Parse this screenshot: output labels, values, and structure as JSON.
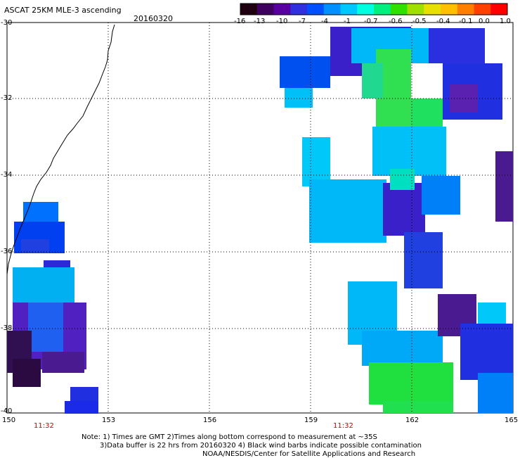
{
  "header": {
    "title": "ASCAT 25KM MLE-3 ascending",
    "date": "20160320"
  },
  "colorbar": {
    "ticks": [
      "-16",
      "-13",
      "-10",
      "-7",
      "-4",
      "-1",
      "-0.7",
      "-0.6",
      "-0.5",
      "-0.4",
      "-0.1",
      "0.0",
      "1.0"
    ],
    "colors": [
      "#200010",
      "#400060",
      "#5a00a0",
      "#3030e0",
      "#0050ff",
      "#0090ff",
      "#00c8ff",
      "#00ffe0",
      "#00f080",
      "#30e000",
      "#a0e000",
      "#e8e000",
      "#ffc000",
      "#ff8000",
      "#ff4000",
      "#ff0000"
    ]
  },
  "axes": {
    "lat_labels": [
      "-30",
      "-32",
      "-34",
      "-36",
      "-38",
      "-40"
    ],
    "lon_labels": [
      "150",
      "153",
      "156",
      "159",
      "162",
      "165"
    ]
  },
  "times": [
    "11:32",
    "11:32"
  ],
  "notes": {
    "line1": "Note: 1) Times are GMT 2)Times along bottom correspond to measurement at ~35S",
    "line2": "3)Data buffer is 22 hrs from 20160320 4) Black wind barbs indicate possible contamination",
    "line3": "NOAA/NESDIS/Center for Satellite Applications and Research"
  }
}
